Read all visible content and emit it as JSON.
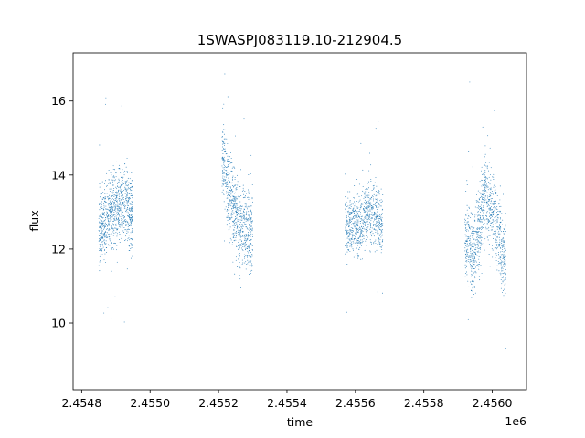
{
  "chart_data": {
    "type": "scatter",
    "title": "1SWASPJ083119.10-212904.5",
    "xlabel": "time",
    "ylabel": "flux",
    "x_offset_label": "1e6",
    "x_tick_labels": [
      "2.4548",
      "2.4550",
      "2.4552",
      "2.4554",
      "2.4556",
      "2.4558",
      "2.4560"
    ],
    "x_ticks": [
      2454800,
      2455000,
      2455200,
      2455400,
      2455600,
      2455800,
      2456000
    ],
    "y_ticks": [
      10,
      12,
      14,
      16
    ],
    "y_tick_labels": [
      "10",
      "12",
      "14",
      "16"
    ],
    "xlim": [
      2454775,
      2456100
    ],
    "ylim": [
      8.2,
      17.3
    ],
    "grid": false,
    "legend": "none",
    "marker_color": "#1f77b4",
    "series": [
      {
        "segments": [
          {
            "x_range": [
              2454850,
              2454950
            ],
            "center_x": [
              2454850,
              2454890,
              2454930,
              2454950
            ],
            "center_y": [
              12.6,
              13.0,
              13.3,
              12.9
            ],
            "spread": 1.1,
            "density": 900
          },
          {
            "x_range": [
              2455210,
              2455300
            ],
            "center_x": [
              2455210,
              2455230,
              2455260,
              2455300
            ],
            "center_y": [
              14.6,
              13.6,
              12.6,
              12.5
            ],
            "spread": 1.2,
            "density": 750
          },
          {
            "x_range": [
              2455570,
              2455680
            ],
            "center_x": [
              2455570,
              2455610,
              2455640,
              2455680
            ],
            "center_y": [
              12.7,
              12.6,
              13.1,
              12.6
            ],
            "spread": 0.9,
            "density": 800
          },
          {
            "x_range": [
              2455920,
              2456040
            ],
            "center_x": [
              2455920,
              2455945,
              2455980,
              2456040
            ],
            "center_y": [
              12.3,
              11.8,
              13.6,
              11.7
            ],
            "spread": 1.2,
            "density": 950
          }
        ]
      }
    ]
  }
}
